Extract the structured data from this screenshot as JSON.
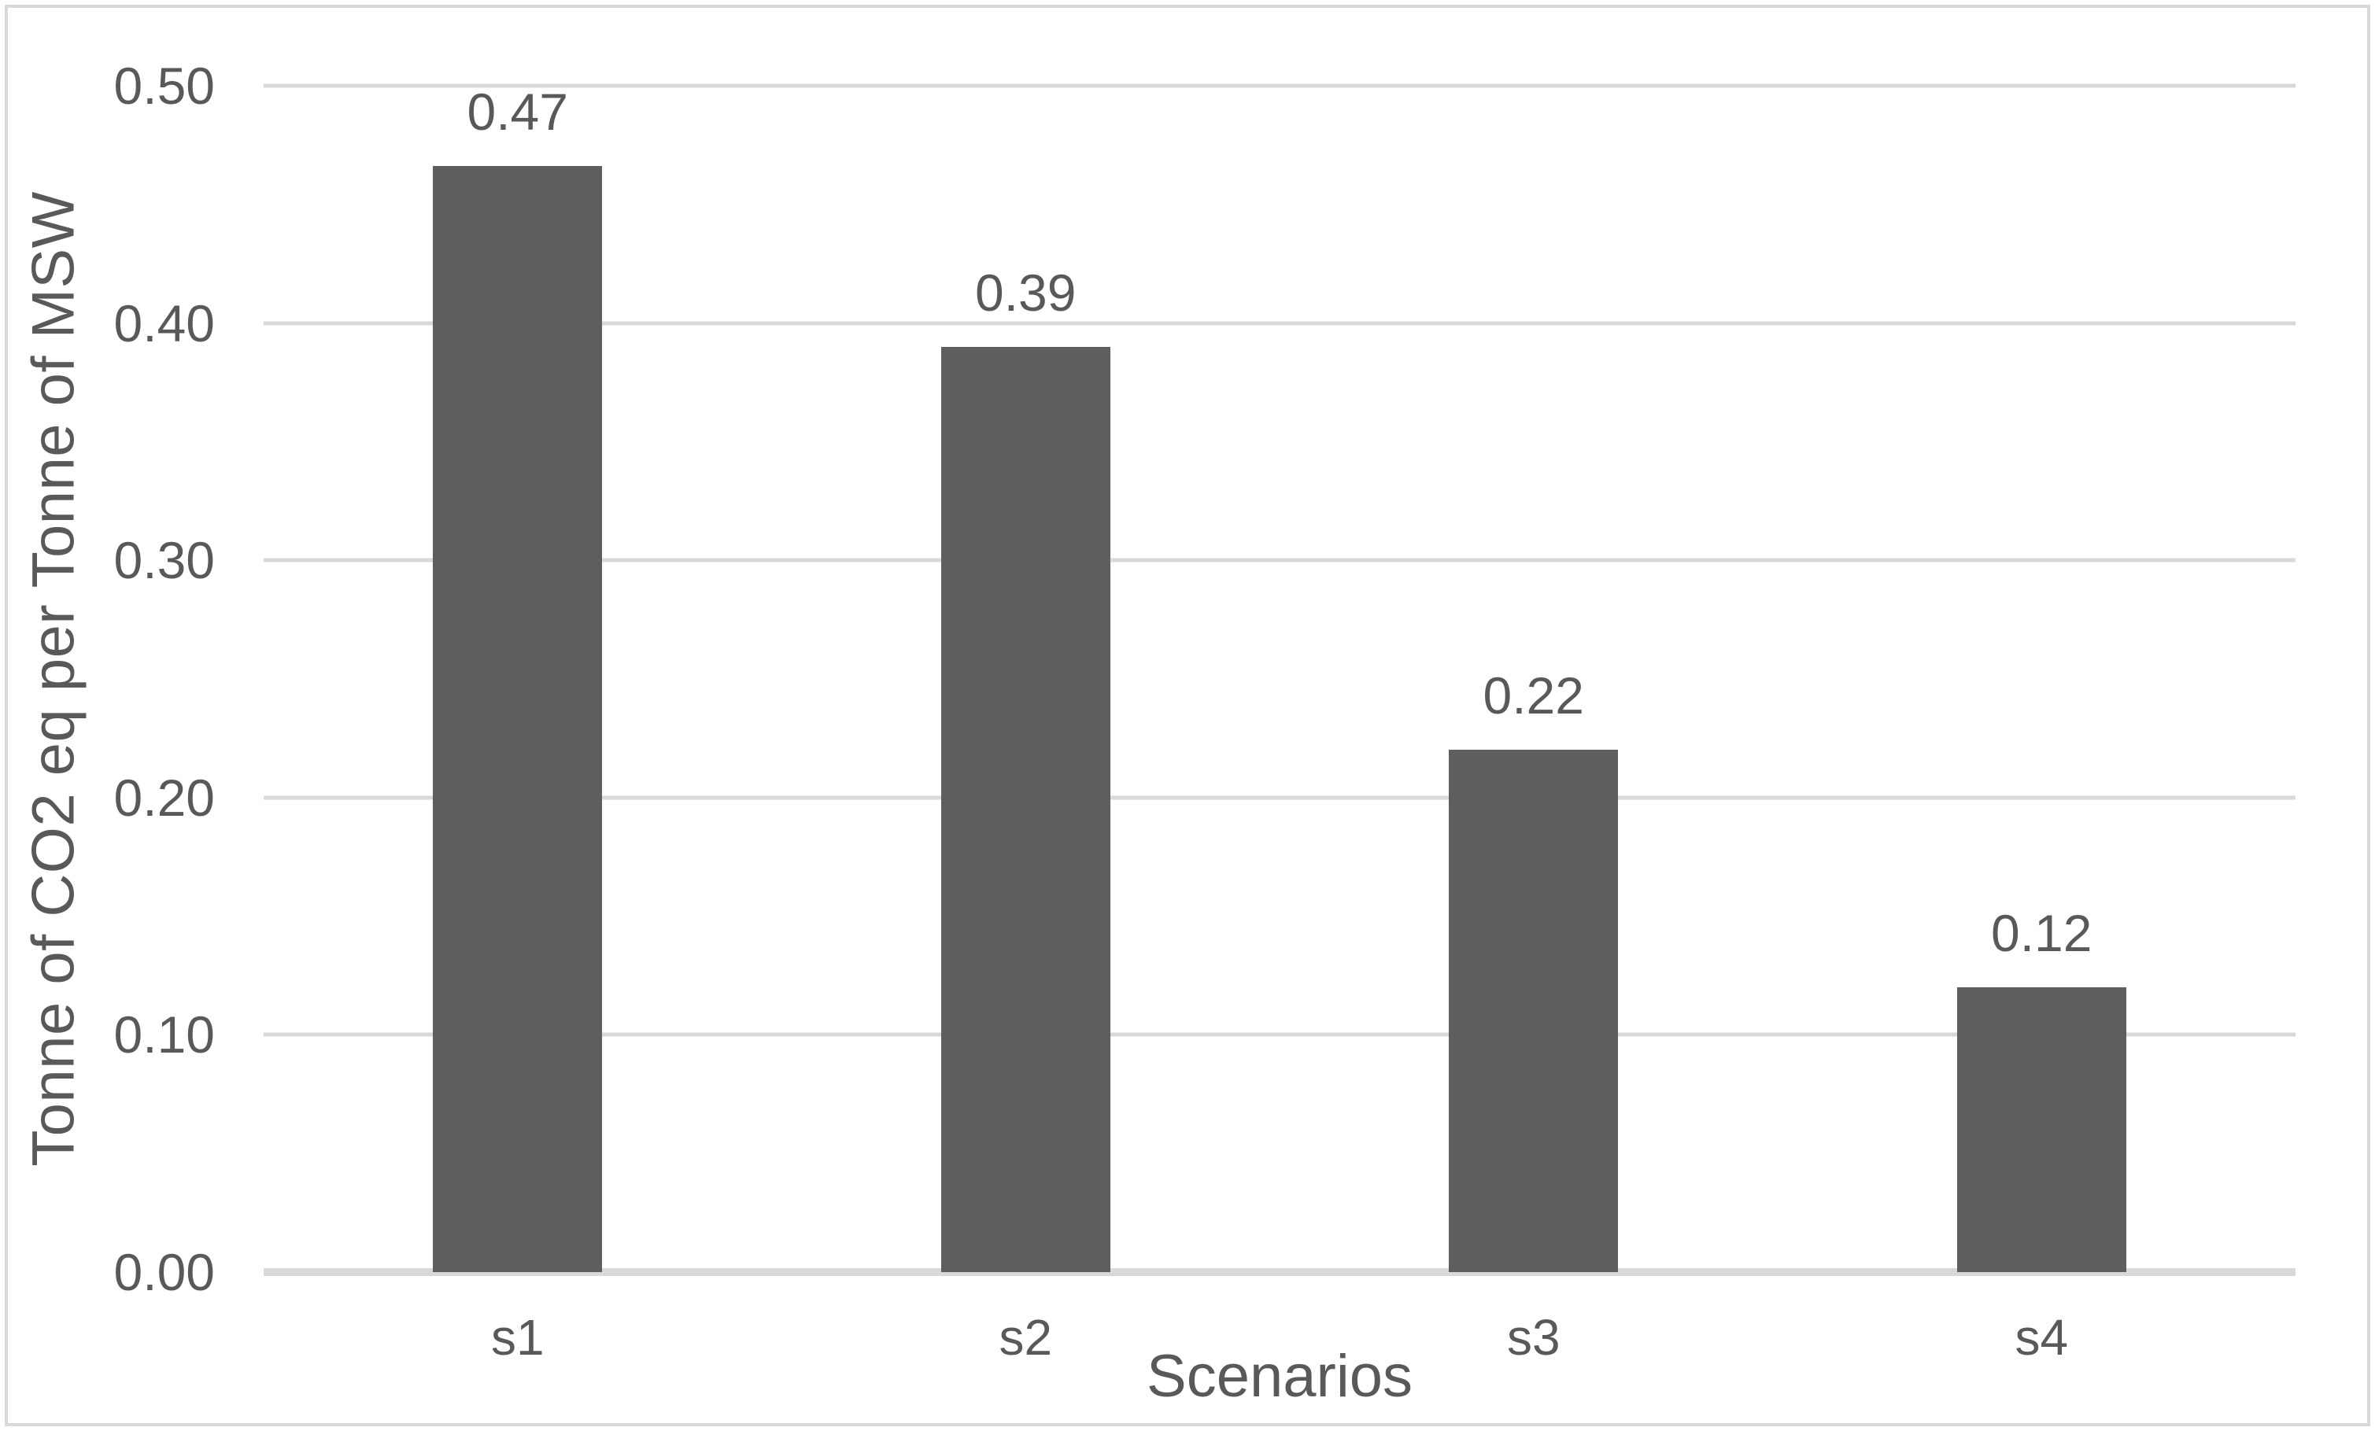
{
  "chart_data": {
    "type": "bar",
    "categories": [
      "s1",
      "s2",
      "s3",
      "s4"
    ],
    "values": [
      0.47,
      0.39,
      0.22,
      0.12
    ],
    "title": "",
    "xlabel": "Scenarios",
    "ylabel": "Tonne of CO2 eq per Tonne of MSW",
    "ylim": [
      0,
      0.5
    ],
    "yticks": [
      "0.00",
      "0.10",
      "0.20",
      "0.30",
      "0.40",
      "0.50"
    ],
    "grid": "horizontal",
    "legend": "none",
    "data_labels": "above-bars",
    "bar_color": "#5E5E60",
    "gridline_color": "#D9D9D9",
    "text_color": "#595959",
    "frame_border_color": "#D9D9D9"
  }
}
